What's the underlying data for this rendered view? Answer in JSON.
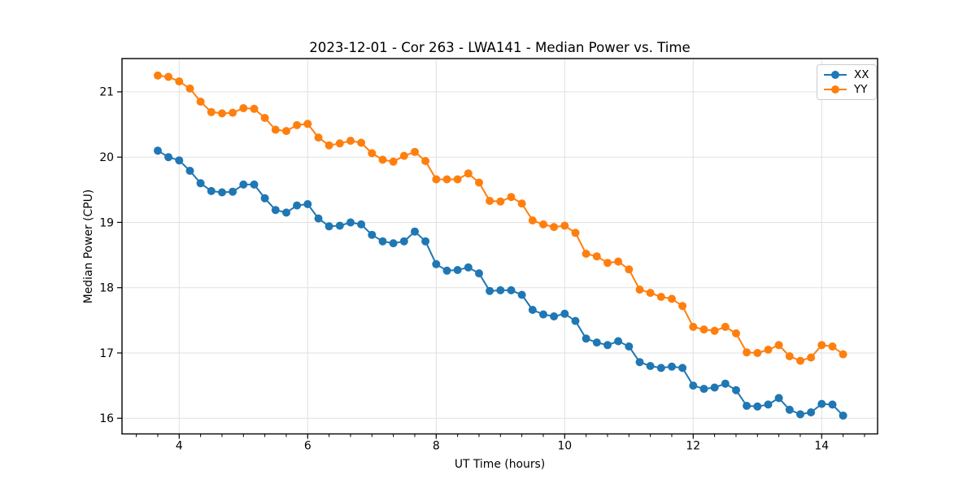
{
  "chart_data": {
    "type": "line",
    "title": "2023-12-01 - Cor 263 - LWA141 - Median Power vs. Time",
    "xlabel": "UT Time (hours)",
    "ylabel": "Median Power (CPU)",
    "xlim": [
      3.11,
      14.87
    ],
    "ylim": [
      15.76,
      21.51
    ],
    "xticks": [
      4,
      6,
      8,
      10,
      12,
      14
    ],
    "xtick_labels": [
      "4",
      "6",
      "8",
      "10",
      "12",
      "14"
    ],
    "x_minor_step": 0.3333333,
    "yticks": [
      16,
      17,
      18,
      19,
      20,
      21
    ],
    "ytick_labels": [
      "16",
      "17",
      "18",
      "19",
      "20",
      "21"
    ],
    "grid": true,
    "legend_position": "upper right",
    "marker": "circle",
    "colors": {
      "background": "#ffffff",
      "grid": "#e0e0e0",
      "spine": "#000000",
      "XX": "#1f77b4",
      "YY": "#ff7f0e"
    },
    "x": [
      3.667,
      3.833,
      4.0,
      4.167,
      4.333,
      4.5,
      4.667,
      4.833,
      5.0,
      5.167,
      5.333,
      5.5,
      5.667,
      5.833,
      6.0,
      6.167,
      6.333,
      6.5,
      6.667,
      6.833,
      7.0,
      7.167,
      7.333,
      7.5,
      7.667,
      7.833,
      8.0,
      8.167,
      8.333,
      8.5,
      8.667,
      8.833,
      9.0,
      9.167,
      9.333,
      9.5,
      9.667,
      9.833,
      10.0,
      10.167,
      10.333,
      10.5,
      10.667,
      10.833,
      11.0,
      11.167,
      11.333,
      11.5,
      11.667,
      11.833,
      12.0,
      12.167,
      12.333,
      12.5,
      12.667,
      12.833,
      13.0,
      13.167,
      13.333,
      13.5,
      13.667,
      13.833,
      14.0,
      14.167,
      14.333
    ],
    "series": [
      {
        "name": "XX",
        "color": "#1f77b4",
        "values": [
          20.1,
          20.0,
          19.95,
          19.79,
          19.6,
          19.48,
          19.46,
          19.47,
          19.58,
          19.58,
          19.37,
          19.19,
          19.15,
          19.26,
          19.28,
          19.06,
          18.94,
          18.95,
          19.0,
          18.97,
          18.81,
          18.71,
          18.68,
          18.71,
          18.86,
          18.71,
          18.36,
          18.26,
          18.27,
          18.31,
          18.22,
          17.95,
          17.96,
          17.96,
          17.89,
          17.66,
          17.59,
          17.56,
          17.6,
          17.49,
          17.22,
          17.16,
          17.12,
          17.18,
          17.1,
          16.86,
          16.8,
          16.77,
          16.79,
          16.77,
          16.5,
          16.45,
          16.47,
          16.53,
          16.43,
          16.19,
          16.18,
          16.21,
          16.31,
          16.13,
          16.06,
          16.09,
          16.22,
          16.21,
          16.04
        ]
      },
      {
        "name": "YY",
        "color": "#ff7f0e",
        "values": [
          21.25,
          21.23,
          21.16,
          21.05,
          20.85,
          20.69,
          20.67,
          20.68,
          20.75,
          20.74,
          20.6,
          20.42,
          20.4,
          20.49,
          20.51,
          20.3,
          20.18,
          20.21,
          20.25,
          20.22,
          20.06,
          19.96,
          19.93,
          20.02,
          20.08,
          19.94,
          19.66,
          19.66,
          19.66,
          19.75,
          19.61,
          19.33,
          19.32,
          19.39,
          19.29,
          19.03,
          18.97,
          18.93,
          18.95,
          18.84,
          18.52,
          18.48,
          18.38,
          18.4,
          18.28,
          17.97,
          17.92,
          17.86,
          17.83,
          17.72,
          17.4,
          17.36,
          17.34,
          17.4,
          17.3,
          17.01,
          17.0,
          17.05,
          17.12,
          16.95,
          16.88,
          16.93,
          17.12,
          17.1,
          16.98
        ]
      }
    ]
  }
}
